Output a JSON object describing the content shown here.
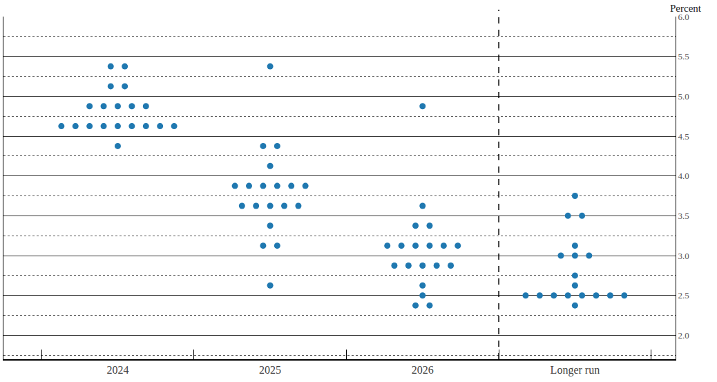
{
  "chart_data": {
    "type": "dot",
    "y_label": "Percent",
    "categories": [
      "2024",
      "2025",
      "2026",
      "Longer run"
    ],
    "values": [
      [
        5.375,
        5.375,
        5.125,
        5.125,
        4.875,
        4.875,
        4.875,
        4.875,
        4.875,
        4.625,
        4.625,
        4.625,
        4.625,
        4.625,
        4.625,
        4.625,
        4.625,
        4.625,
        4.375
      ],
      [
        5.375,
        4.375,
        4.375,
        4.125,
        3.875,
        3.875,
        3.875,
        3.875,
        3.875,
        3.875,
        3.625,
        3.625,
        3.625,
        3.625,
        3.625,
        3.375,
        3.125,
        3.125,
        2.625
      ],
      [
        4.875,
        3.625,
        3.375,
        3.375,
        3.125,
        3.125,
        3.125,
        3.125,
        3.125,
        3.125,
        2.875,
        2.875,
        2.875,
        2.875,
        2.875,
        2.625,
        2.5,
        2.375,
        2.375
      ],
      [
        3.75,
        3.5,
        3.5,
        3.125,
        3.0,
        3.0,
        3.0,
        2.75,
        2.625,
        2.5,
        2.5,
        2.5,
        2.5,
        2.5,
        2.5,
        2.5,
        2.5,
        2.375
      ]
    ],
    "color": "#1f78b0",
    "marker": "circle",
    "ylim": [
      1.7,
      6.0
    ],
    "yticks": [
      {
        "value": 2.0,
        "label": "2.0"
      },
      {
        "value": 2.5,
        "label": "2.5"
      },
      {
        "value": 3.0,
        "label": "3.0"
      },
      {
        "value": 3.5,
        "label": "3.5"
      },
      {
        "value": 4.0,
        "label": "4.0"
      },
      {
        "value": 4.5,
        "label": "4.5"
      },
      {
        "value": 5.0,
        "label": "5.0"
      },
      {
        "value": 5.5,
        "label": "5.5"
      },
      {
        "value": 6.0,
        "label": "6.0"
      }
    ],
    "grid": true
  }
}
